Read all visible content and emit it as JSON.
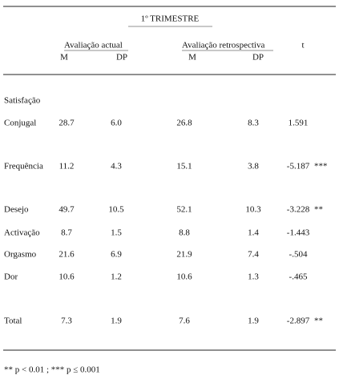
{
  "table": {
    "title": "1º TRIMESTRE",
    "groups": [
      "Avaliação actual",
      "Avaliação retrospectiva"
    ],
    "t_header": "t",
    "subheaders": [
      "M",
      "DP",
      "M",
      "DP"
    ],
    "rows": [
      {
        "label": "Satisfação"
      },
      {
        "label": "Conjugal",
        "m1": "28.7",
        "dp1": "6.0",
        "m2": "26.8",
        "dp2": "8.3",
        "t": "1.591"
      },
      {
        "label": "Frequência",
        "m1": "11.2",
        "dp1": "4.3",
        "m2": "15.1",
        "dp2": "3.8",
        "t": "-5.187",
        "sig": "***"
      },
      {
        "label": "Desejo",
        "m1": "49.7",
        "dp1": "10.5",
        "m2": "52.1",
        "dp2": "10.3",
        "t": "-3.228",
        "sig": "**"
      },
      {
        "label": "Activação",
        "m1": "8.7",
        "dp1": "1.5",
        "m2": "8.8",
        "dp2": "1.4",
        "t": "-1.443"
      },
      {
        "label": "Orgasmo",
        "m1": "21.6",
        "dp1": "6.9",
        "m2": "21.9",
        "dp2": "7.4",
        "t": "-.504"
      },
      {
        "label": "Dor",
        "m1": "10.6",
        "dp1": "1.2",
        "m2": "10.6",
        "dp2": "1.3",
        "t": "-.465"
      },
      {
        "label": "Total",
        "m1": "7.3",
        "dp1": "1.9",
        "m2": "7.6",
        "dp2": "1.9",
        "t": "-2.897",
        "sig": "**"
      }
    ],
    "footnote": "** p < 0.01 ; *** p ≤ 0.001"
  }
}
